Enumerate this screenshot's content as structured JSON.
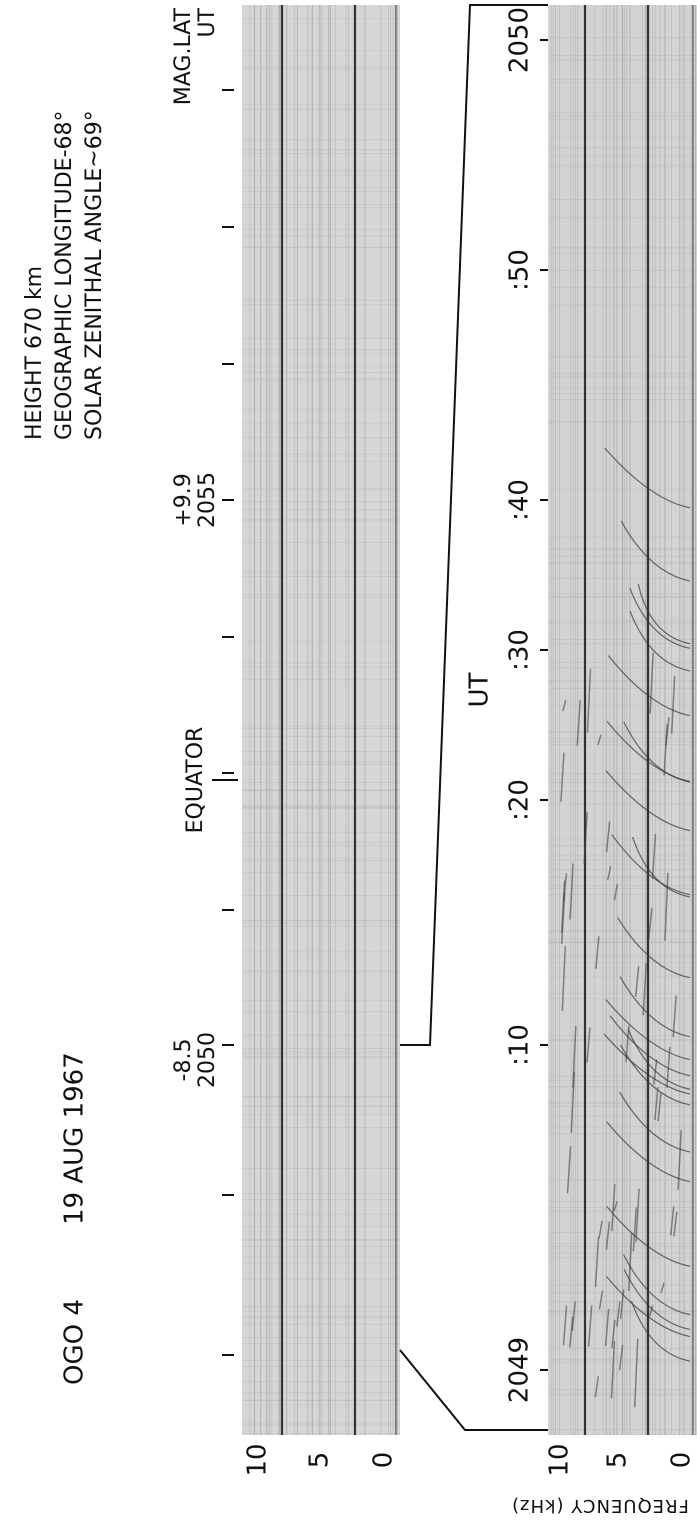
{
  "header": {
    "spacecraft": "OGO 4",
    "date": "19 AUG 1967",
    "height": "HEIGHT 670 km",
    "longitude": "GEOGRAPHIC LONGITUDE-68°",
    "zenith": "SOLAR ZENITHAL ANGLE~69°"
  },
  "top_panel": {
    "start": {
      "lat": "-8.5",
      "time": "2050"
    },
    "equator": "EQUATOR",
    "end": {
      "lat": "+9.9",
      "time": "2055"
    },
    "legend": {
      "lat": "MAG.LAT",
      "time": "UT"
    },
    "freq_ticks": [
      "10",
      "5",
      "0"
    ]
  },
  "bottom_panel": {
    "time_label": "UT",
    "time_ticks": [
      "2049",
      ":10",
      ":20",
      ":30",
      ":40",
      ":50",
      "2050"
    ],
    "freq_ticks": [
      "10",
      "5",
      "0"
    ]
  },
  "y_axis_label": "FREQUENCY (kHz)"
}
